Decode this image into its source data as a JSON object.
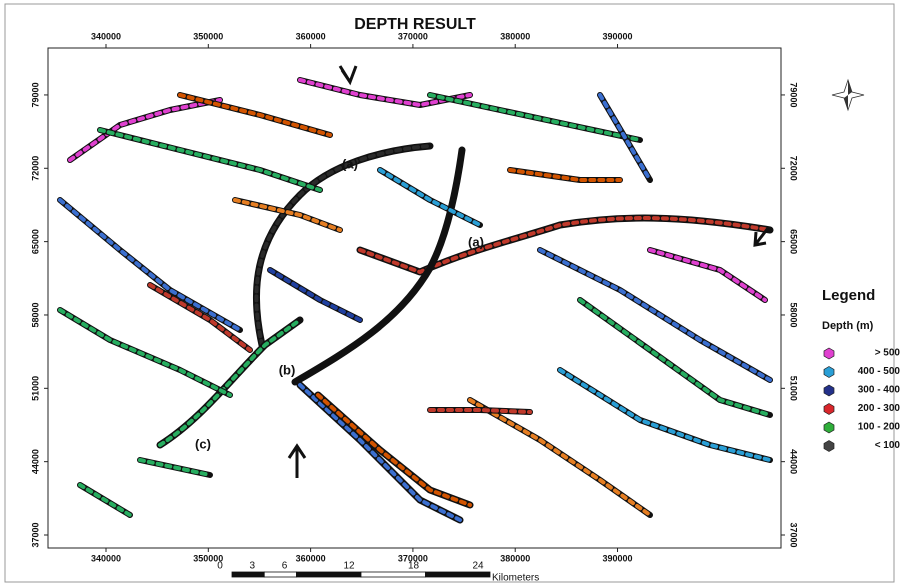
{
  "title": "DEPTH RESULT",
  "map": {
    "xlim": [
      334330,
      405980
    ],
    "ylim": [
      35760,
      83480
    ],
    "xticks": [
      340000,
      350000,
      360000,
      370000,
      380000,
      390000
    ],
    "yticks": [
      37000,
      44000,
      51000,
      58000,
      65000,
      72000,
      79000
    ],
    "annotations": [
      "(a)",
      "(a)",
      "(b)",
      "(c)"
    ]
  },
  "legend": {
    "title": "Legend",
    "subtitle": "Depth (m)",
    "items": [
      {
        "label": "> 500",
        "color": "#e040d0"
      },
      {
        "label": "400 - 500",
        "color": "#2a9fd6"
      },
      {
        "label": "300 - 400",
        "color": "#23318a"
      },
      {
        "label": "200 - 300",
        "color": "#d9262b"
      },
      {
        "label": "100 - 200",
        "color": "#2fae3a"
      },
      {
        "label": "< 100",
        "color": "#444444"
      }
    ]
  },
  "scale_bar": {
    "ticks": [
      0,
      3,
      6,
      12,
      18,
      24
    ],
    "unit": "Kilometers"
  }
}
